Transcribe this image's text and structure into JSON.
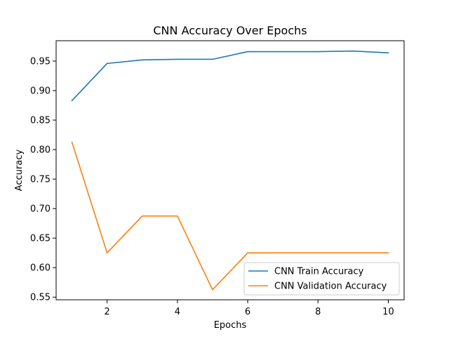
{
  "chart_data": {
    "type": "line",
    "title": "CNN Accuracy Over Epochs",
    "xlabel": "Epochs",
    "ylabel": "Accuracy",
    "x": [
      1,
      2,
      3,
      4,
      5,
      6,
      7,
      8,
      9,
      10
    ],
    "xlim": [
      0.55,
      10.45
    ],
    "ylim": [
      0.5455,
      0.9845
    ],
    "xticks": [
      2,
      4,
      6,
      8,
      10
    ],
    "xtick_labels": [
      "2",
      "4",
      "6",
      "8",
      "10"
    ],
    "yticks": [
      0.55,
      0.6,
      0.65,
      0.7,
      0.75,
      0.8,
      0.85,
      0.9,
      0.95
    ],
    "ytick_labels": [
      "0.55",
      "0.60",
      "0.65",
      "0.70",
      "0.75",
      "0.80",
      "0.85",
      "0.90",
      "0.95"
    ],
    "grid": false,
    "legend_position": "lower-right",
    "series": [
      {
        "name": "CNN Train Accuracy",
        "color": "#1f77b4",
        "values": [
          0.883,
          0.946,
          0.952,
          0.953,
          0.953,
          0.966,
          0.966,
          0.966,
          0.967,
          0.964
        ]
      },
      {
        "name": "CNN Validation Accuracy",
        "color": "#ff7f0e",
        "values": [
          0.8125,
          0.625,
          0.6875,
          0.6875,
          0.5625,
          0.625,
          0.625,
          0.625,
          0.625,
          0.625
        ]
      }
    ]
  }
}
